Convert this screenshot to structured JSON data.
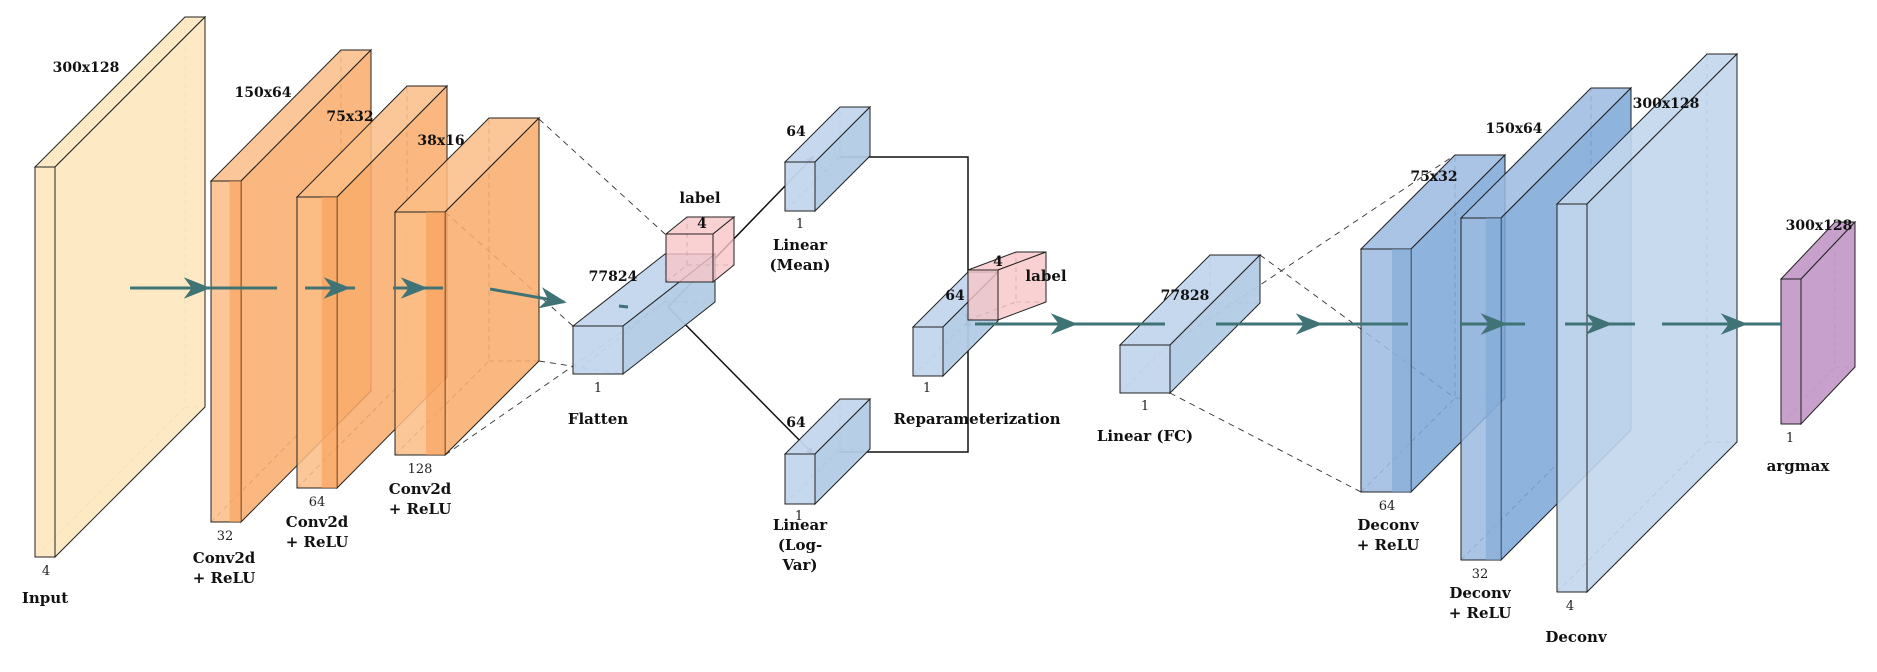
{
  "colors": {
    "input_face": "#fde9c1",
    "input_side": "#fde9c1",
    "conv_face": "#fbbd86",
    "conv_side": "#f9ab6a",
    "conv_dark": "#f79a50",
    "linear_face": "#c2d6ec",
    "linear_side": "#b3cbe6",
    "deconv_face": "#9bbae0",
    "deconv_dark": "#7aa6d6",
    "output_face": "#c49bc9",
    "label_face": "#f7c6c8",
    "arrow": "#3f7375"
  },
  "blocks": [
    {
      "id": "input",
      "kind": "input",
      "dim_label": "300x128",
      "depth_label": "4",
      "name": [
        "Input"
      ]
    },
    {
      "id": "conv1",
      "kind": "conv",
      "dim_label": "150x64",
      "depth_label": "32",
      "name": [
        "Conv2d",
        "+ ReLU"
      ]
    },
    {
      "id": "conv2",
      "kind": "conv",
      "dim_label": "75x32",
      "depth_label": "64",
      "name": [
        "Conv2d",
        "+ ReLU"
      ]
    },
    {
      "id": "conv3",
      "kind": "conv",
      "dim_label": "38x16",
      "depth_label": "128",
      "name": [
        "Conv2d",
        "+ ReLU"
      ]
    },
    {
      "id": "flatten",
      "kind": "linear",
      "dim_label": "77824",
      "depth_label": "1",
      "name": [
        "Flatten"
      ]
    },
    {
      "id": "label1",
      "kind": "label",
      "dim_label": "4",
      "depth_label": "",
      "name": [
        "label"
      ]
    },
    {
      "id": "mean",
      "kind": "linear",
      "dim_label": "64",
      "depth_label": "1",
      "name": [
        "Linear",
        "(Mean)"
      ]
    },
    {
      "id": "logvar",
      "kind": "linear",
      "dim_label": "64",
      "depth_label": "1",
      "name": [
        "Linear",
        "(Log-",
        "Var)"
      ]
    },
    {
      "id": "reparam",
      "kind": "linear",
      "dim_label": "64",
      "depth_label": "1",
      "name": [
        "Reparameterization"
      ]
    },
    {
      "id": "label2",
      "kind": "label",
      "dim_label": "4",
      "depth_label": "",
      "name": [
        "label"
      ]
    },
    {
      "id": "fc",
      "kind": "linear",
      "dim_label": "77828",
      "depth_label": "1",
      "name": [
        "Linear (FC)"
      ]
    },
    {
      "id": "deconv1",
      "kind": "deconv",
      "dim_label": "75x32",
      "depth_label": "64",
      "name": [
        "Deconv",
        "+ ReLU"
      ]
    },
    {
      "id": "deconv2",
      "kind": "deconv",
      "dim_label": "150x64",
      "depth_label": "32",
      "name": [
        "Deconv",
        "+ ReLU"
      ]
    },
    {
      "id": "deconv3",
      "kind": "deconv_light",
      "dim_label": "300x128",
      "depth_label": "4",
      "name": [
        "Deconv"
      ]
    },
    {
      "id": "argmax",
      "kind": "output",
      "dim_label": "300x128",
      "depth_label": "1",
      "name": [
        "argmax"
      ]
    }
  ]
}
